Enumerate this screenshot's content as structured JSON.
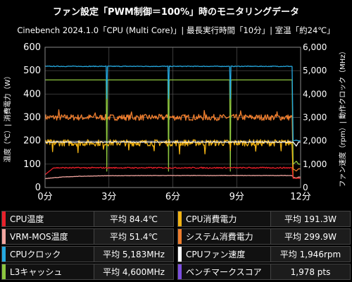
{
  "header": {
    "title": "ファン設定「PWM制御＝100%」時のモニタリングデータ",
    "subtitle": "Cinebench 2024.1.0「CPU (Multi Core)」| 最長実行時間「10分」| 室温「約24℃」"
  },
  "chart_data": {
    "type": "line",
    "xlabel": "",
    "ylabel": "温度（℃）| 消費電力（W）",
    "ylabel_right": "ファン速度（rpm）| 動作クロック（MHz）",
    "x_ticks": [
      "0分",
      "3分",
      "6分",
      "9分",
      "12分"
    ],
    "x_range_min": [
      0,
      12
    ],
    "ylim": [
      0,
      600
    ],
    "ylim_right": [
      0,
      6000
    ],
    "y_ticks": [
      "0",
      "100",
      "200",
      "300",
      "400",
      "500",
      "600"
    ],
    "y_ticks_right": [
      "0",
      "1,000",
      "2,000",
      "3,000",
      "4,000",
      "5,000",
      "6,000"
    ],
    "test_end_min": 11.6,
    "series": [
      {
        "name": "CPU温度",
        "color": "#e8202a",
        "axis": "left",
        "avg": "平均 84.4℃",
        "baseline": 84.4,
        "start": 55,
        "idle": 40
      },
      {
        "name": "CPU消費電力",
        "color": "#f2b313",
        "axis": "left",
        "avg": "平均 191.3W",
        "baseline": 191.3,
        "idle": 40
      },
      {
        "name": "VRM-MOS温度",
        "color": "#f4a6a0",
        "axis": "left",
        "avg": "平均 51.4℃",
        "baseline": 51.4,
        "start": 38,
        "idle": 45
      },
      {
        "name": "システム消費電力",
        "color": "#ee7d2d",
        "axis": "left",
        "avg": "平均 299.9W",
        "baseline": 299.9,
        "idle": 80
      },
      {
        "name": "CPUクロック",
        "color": "#25a9e0",
        "axis": "right",
        "avg": "平均 5,183MHz",
        "baseline": 5183,
        "dips_min": [
          2.9,
          5.8,
          8.7
        ],
        "idle": 2000
      },
      {
        "name": "CPUファン速度",
        "color": "#ffffff",
        "axis": "right",
        "avg": "平均 1,946rpm",
        "baseline": 1946,
        "idle": 1946
      },
      {
        "name": "L3キャッシュ",
        "color": "#8dc63f",
        "axis": "right",
        "avg": "平均 4,600MHz",
        "baseline": 4600,
        "dips_min": [
          2.9,
          5.8,
          8.7
        ],
        "idle": 1000
      },
      {
        "name": "ベンチマークスコア",
        "color": "#7c4ee0",
        "axis": "none",
        "avg": "1,978 pts"
      }
    ]
  },
  "legend": [
    {
      "name": "CPU温度",
      "value": "平均 84.4℃",
      "color": "#e8202a"
    },
    {
      "name": "CPU消費電力",
      "value": "平均 191.3W",
      "color": "#f2b313"
    },
    {
      "name": "VRM-MOS温度",
      "value": "平均 51.4℃",
      "color": "#f4a6a0"
    },
    {
      "name": "システム消費電力",
      "value": "平均 299.9W",
      "color": "#ee7d2d"
    },
    {
      "name": "CPUクロック",
      "value": "平均 5,183MHz",
      "color": "#25a9e0"
    },
    {
      "name": "CPUファン速度",
      "value": "平均 1,946rpm",
      "color": "#ffffff"
    },
    {
      "name": "L3キャッシュ",
      "value": "平均 4,600MHz",
      "color": "#8dc63f"
    },
    {
      "name": "ベンチマークスコア",
      "value": "1,978 pts",
      "color": "#7c4ee0"
    }
  ]
}
